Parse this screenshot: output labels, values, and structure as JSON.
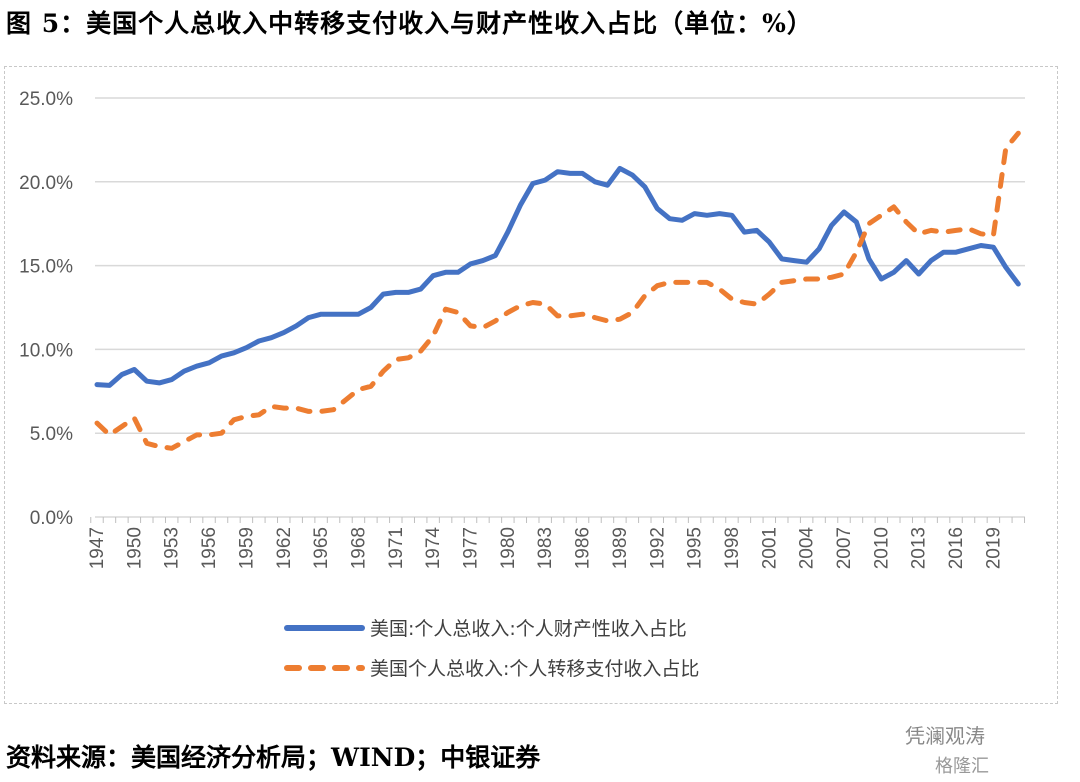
{
  "title": "图 5：美国个人总收入中转移支付收入与财产性收入占比（单位：%）",
  "source": "资料来源：美国经济分析局；WIND；中银证券",
  "watermark": {
    "account": "凭澜观涛",
    "platform": "格隆汇"
  },
  "chart_data": {
    "type": "line",
    "title": "美国个人总收入中转移支付收入与财产性收入占比（单位：%）",
    "xlabel": "",
    "ylabel": "",
    "ylim": [
      0,
      25
    ],
    "yticks": [
      "0.0%",
      "5.0%",
      "10.0%",
      "15.0%",
      "20.0%",
      "25.0%"
    ],
    "xticks": [
      "1947",
      "1950",
      "1953",
      "1956",
      "1959",
      "1962",
      "1965",
      "1968",
      "1971",
      "1974",
      "1977",
      "1980",
      "1983",
      "1986",
      "1989",
      "1992",
      "1995",
      "1998",
      "2001",
      "2004",
      "2007",
      "2010",
      "2013",
      "2016",
      "2019"
    ],
    "x_start": 1947,
    "x_end": 2021,
    "grid": true,
    "legend_position": "bottom",
    "series": [
      {
        "name": "美国:个人总收入:个人财产性收入占比",
        "color": "#4472C4",
        "style": "solid",
        "values": [
          7.9,
          7.85,
          8.5,
          8.8,
          8.1,
          8.0,
          8.2,
          8.7,
          9.0,
          9.2,
          9.6,
          9.8,
          10.1,
          10.5,
          10.7,
          11.0,
          11.4,
          11.9,
          12.1,
          12.1,
          12.1,
          12.1,
          12.5,
          13.3,
          13.4,
          13.4,
          13.6,
          14.4,
          14.6,
          14.6,
          15.1,
          15.3,
          15.6,
          17.0,
          18.6,
          19.9,
          20.1,
          20.6,
          20.5,
          20.5,
          20.0,
          19.8,
          20.8,
          20.4,
          19.7,
          18.4,
          17.8,
          17.7,
          18.1,
          18.0,
          18.1,
          18.0,
          17.0,
          17.1,
          16.4,
          15.4,
          15.3,
          15.2,
          16.0,
          17.4,
          18.2,
          17.6,
          15.4,
          14.2,
          14.6,
          15.3,
          14.5,
          15.3,
          15.8,
          15.8,
          16.0,
          16.2,
          16.1,
          14.9,
          13.9
        ]
      },
      {
        "name": "美国个人总收入:个人转移支付收入占比",
        "color": "#ED7D31",
        "style": "dashed",
        "values": [
          5.6,
          4.9,
          5.4,
          5.9,
          4.4,
          4.2,
          4.1,
          4.5,
          4.9,
          4.9,
          5.0,
          5.8,
          6.0,
          6.1,
          6.6,
          6.5,
          6.5,
          6.3,
          6.3,
          6.4,
          7.0,
          7.6,
          7.8,
          8.7,
          9.4,
          9.5,
          9.9,
          10.8,
          12.4,
          12.2,
          11.4,
          11.3,
          11.7,
          12.2,
          12.6,
          12.8,
          12.7,
          12.0,
          12.0,
          12.1,
          11.9,
          11.7,
          11.8,
          12.2,
          13.2,
          13.8,
          14.0,
          14.0,
          14.0,
          14.0,
          13.6,
          13.0,
          12.8,
          12.7,
          13.3,
          14.0,
          14.1,
          14.2,
          14.2,
          14.3,
          14.5,
          15.8,
          17.5,
          18.0,
          18.5,
          17.6,
          16.9,
          17.1,
          17.0,
          17.1,
          17.2,
          16.9,
          16.8,
          22.0,
          22.9
        ]
      }
    ]
  }
}
